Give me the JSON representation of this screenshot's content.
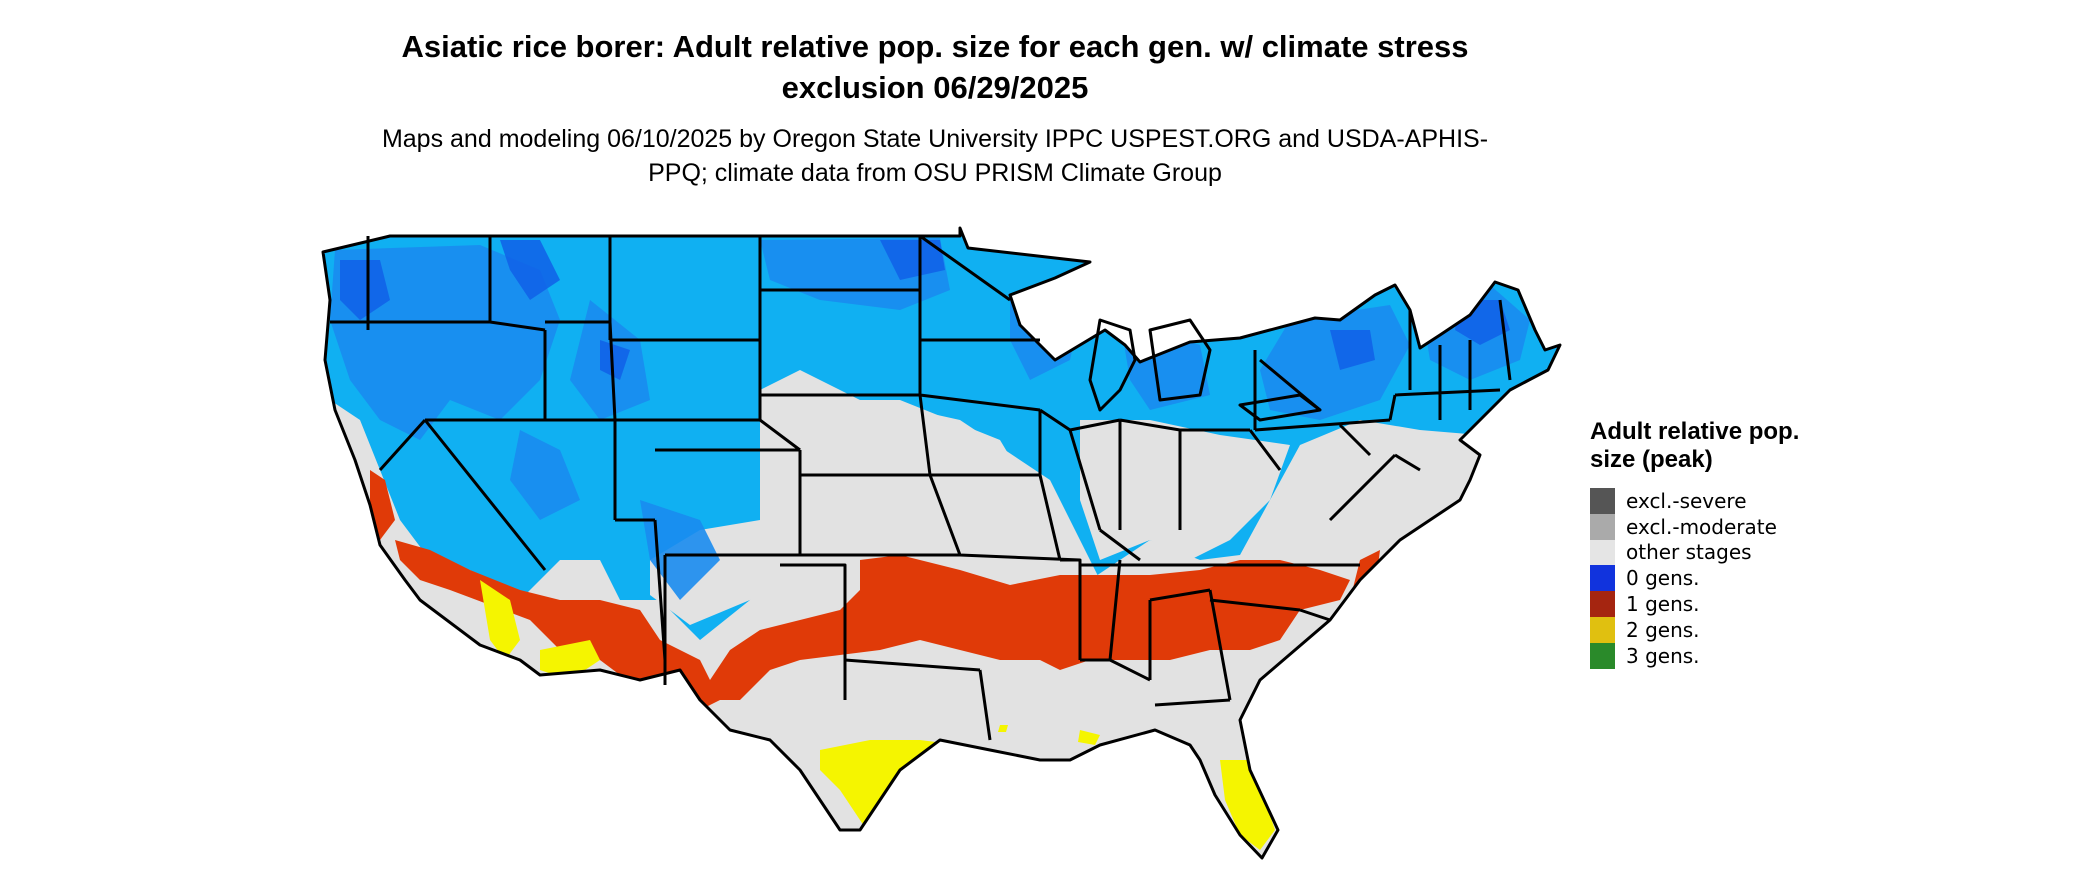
{
  "title": "Asiatic rice borer: Adult relative pop. size for each gen. w/ climate stress exclusion 06/29/2025",
  "subtitle": "Maps and modeling 06/10/2025 by Oregon State University IPPC USPEST.ORG and USDA-APHIS-PPQ; climate data from OSU PRISM Climate Group",
  "legend": {
    "title": "Adult relative pop. size (peak)",
    "items": [
      {
        "label": "excl.-severe",
        "color": "#555555"
      },
      {
        "label": "excl.-moderate",
        "color": "#aaaaaa"
      },
      {
        "label": "other stages",
        "color": "#e5e5e5"
      },
      {
        "label": "0 gens.",
        "color": "#1133dd"
      },
      {
        "label": "1 gens.",
        "color": "#a52510"
      },
      {
        "label": "2 gens.",
        "color": "#e0c010"
      },
      {
        "label": "3 gens.",
        "color": "#2a8a2a"
      }
    ]
  },
  "map_colors": {
    "other_stages": "#e2e2e2",
    "north_light_blue": "#10b0f2",
    "north_mid_blue": "#1a8cf0",
    "north_dark_blue": "#1060e8",
    "one_gen_red": "#e03a08",
    "two_gen_yellow": "#f5f500",
    "borders": "#000000"
  }
}
